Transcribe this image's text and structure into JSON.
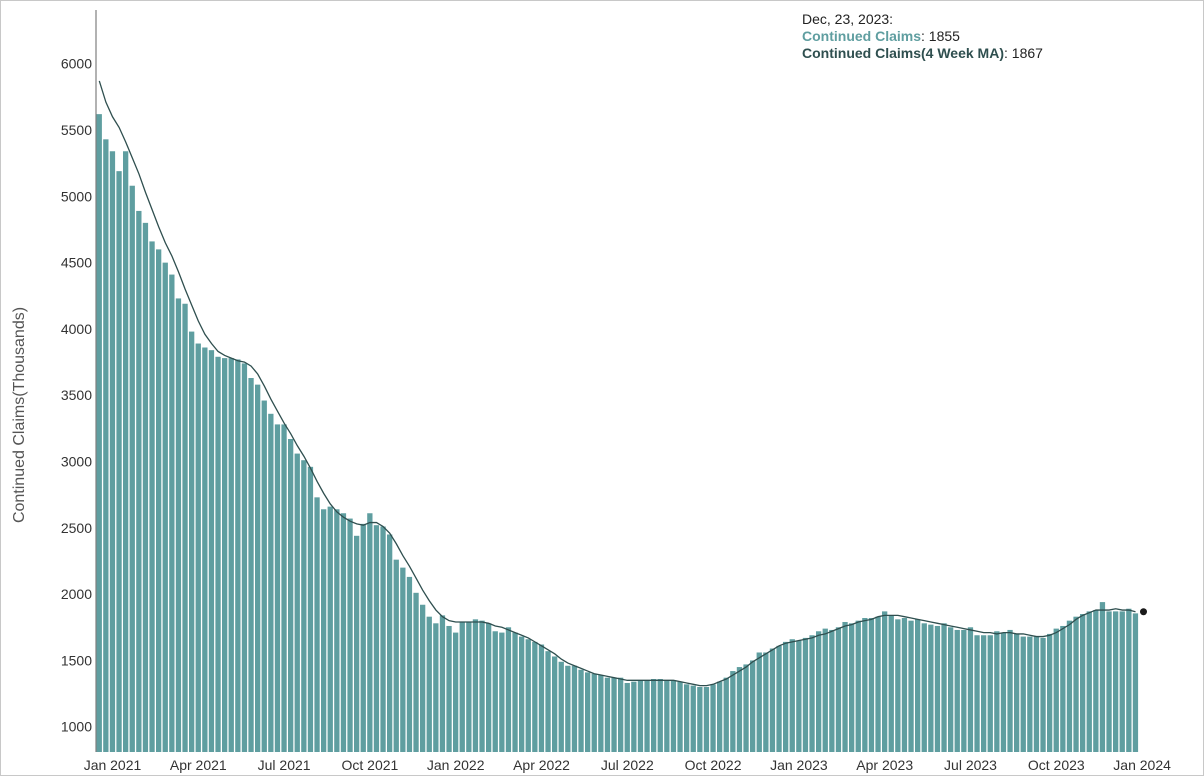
{
  "chart_data": {
    "type": "bar",
    "ylabel": "Continued Claims(Thousands)",
    "xlabel": "",
    "ylim": [
      850,
      6400
    ],
    "y_ticks": [
      1000,
      1500,
      2000,
      2500,
      3000,
      3500,
      4000,
      4500,
      5000,
      5500,
      6000
    ],
    "x_tick_labels": [
      "Jan 2021",
      "Apr 2021",
      "Jul 2021",
      "Oct 2021",
      "Jan 2022",
      "Apr 2022",
      "Jul 2022",
      "Oct 2022",
      "Jan 2023",
      "Apr 2023",
      "Jul 2023",
      "Oct 2023",
      "Jan 2024"
    ],
    "x_tick_weeks": [
      2,
      15,
      28,
      41,
      54,
      67,
      80,
      93,
      106,
      119,
      132,
      145,
      158
    ],
    "x_start_date": "Dec 26, 2020",
    "x_interval": "weekly",
    "series": [
      {
        "name": "Continued Claims",
        "type": "bar",
        "color": "#5f9ea0",
        "values": [
          5620,
          5430,
          5340,
          5190,
          5340,
          5080,
          4890,
          4800,
          4660,
          4600,
          4500,
          4410,
          4230,
          4190,
          3980,
          3890,
          3860,
          3840,
          3790,
          3780,
          3780,
          3770,
          3740,
          3630,
          3580,
          3460,
          3360,
          3280,
          3280,
          3170,
          3060,
          3010,
          2960,
          2730,
          2640,
          2660,
          2640,
          2610,
          2570,
          2440,
          2530,
          2610,
          2520,
          2510,
          2450,
          2260,
          2200,
          2130,
          2010,
          1920,
          1830,
          1780,
          1840,
          1760,
          1710,
          1790,
          1790,
          1810,
          1800,
          1780,
          1720,
          1710,
          1750,
          1710,
          1680,
          1660,
          1640,
          1620,
          1570,
          1530,
          1490,
          1460,
          1460,
          1430,
          1410,
          1400,
          1390,
          1370,
          1370,
          1370,
          1330,
          1340,
          1350,
          1350,
          1360,
          1360,
          1350,
          1350,
          1340,
          1320,
          1310,
          1300,
          1300,
          1320,
          1340,
          1370,
          1420,
          1450,
          1470,
          1500,
          1560,
          1560,
          1590,
          1610,
          1640,
          1660,
          1650,
          1670,
          1690,
          1720,
          1740,
          1730,
          1750,
          1790,
          1780,
          1800,
          1820,
          1820,
          1830,
          1870,
          1840,
          1810,
          1820,
          1800,
          1810,
          1780,
          1770,
          1760,
          1780,
          1750,
          1730,
          1730,
          1750,
          1690,
          1690,
          1690,
          1720,
          1710,
          1730,
          1700,
          1680,
          1680,
          1680,
          1670,
          1700,
          1740,
          1760,
          1800,
          1830,
          1850,
          1870,
          1880,
          1940,
          1870,
          1870,
          1870,
          1890,
          1855
        ]
      },
      {
        "name": "Continued Claims(4 Week MA)",
        "type": "line",
        "color": "#2f4f4f",
        "values": [
          5870,
          5710,
          5600,
          5520,
          5410,
          5290,
          5170,
          5030,
          4900,
          4770,
          4650,
          4550,
          4430,
          4300,
          4180,
          4060,
          3960,
          3890,
          3830,
          3800,
          3780,
          3760,
          3750,
          3720,
          3660,
          3570,
          3470,
          3380,
          3290,
          3210,
          3120,
          3040,
          2950,
          2850,
          2760,
          2680,
          2620,
          2580,
          2550,
          2530,
          2520,
          2540,
          2540,
          2510,
          2460,
          2380,
          2290,
          2210,
          2120,
          2030,
          1950,
          1880,
          1830,
          1800,
          1790,
          1790,
          1790,
          1790,
          1790,
          1780,
          1760,
          1750,
          1730,
          1710,
          1690,
          1670,
          1640,
          1610,
          1580,
          1550,
          1510,
          1480,
          1460,
          1440,
          1420,
          1400,
          1390,
          1380,
          1370,
          1360,
          1350,
          1350,
          1350,
          1350,
          1350,
          1350,
          1350,
          1350,
          1340,
          1330,
          1320,
          1310,
          1310,
          1320,
          1340,
          1360,
          1390,
          1420,
          1450,
          1490,
          1520,
          1550,
          1580,
          1610,
          1630,
          1640,
          1650,
          1660,
          1670,
          1690,
          1700,
          1720,
          1740,
          1760,
          1770,
          1790,
          1800,
          1810,
          1830,
          1840,
          1840,
          1840,
          1830,
          1820,
          1810,
          1800,
          1790,
          1780,
          1770,
          1760,
          1750,
          1740,
          1730,
          1720,
          1710,
          1710,
          1700,
          1710,
          1710,
          1700,
          1700,
          1690,
          1680,
          1680,
          1690,
          1710,
          1740,
          1770,
          1810,
          1840,
          1860,
          1880,
          1880,
          1880,
          1890,
          1880,
          1880,
          1867
        ]
      }
    ],
    "tooltip": {
      "date": "Dec, 23, 2023:",
      "series_1_label": "Continued Claims",
      "series_1_value": "1855",
      "series_2_label": "Continued Claims(4 Week MA)",
      "series_2_value": "1867"
    }
  }
}
